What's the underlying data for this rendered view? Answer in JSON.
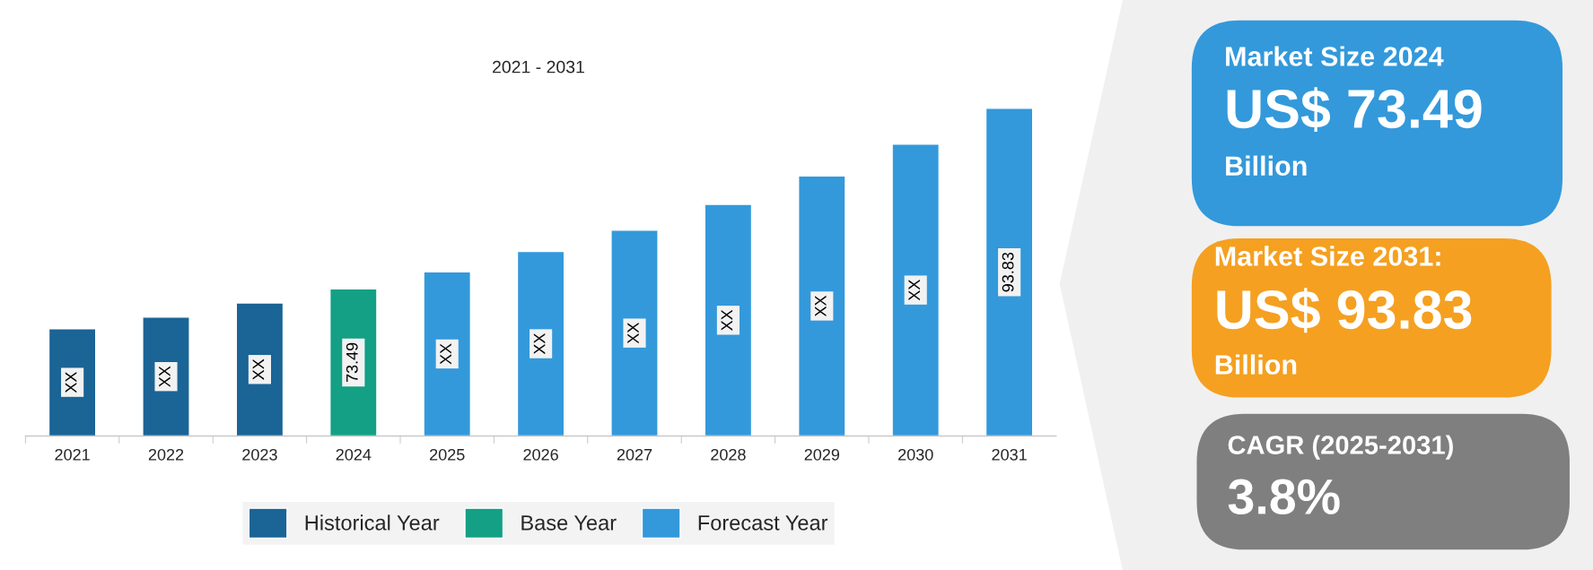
{
  "chart_data": [
    {
      "type": "bar",
      "title": "2021 - 2031",
      "ylim": [
        56.9,
        93.83
      ],
      "tick_labels": "x",
      "categories": [
        "2021",
        "2022",
        "2023",
        "2024",
        "2025",
        "2026",
        "2027",
        "2028",
        "2029",
        "2030",
        "2031"
      ],
      "series": [
        {
          "name": "Historical Year",
          "color": "#1a6496",
          "values": [
            69.0,
            70.3,
            71.9,
            null,
            null,
            null,
            null,
            null,
            null,
            null,
            null
          ],
          "value_labels": [
            "XX",
            "XX",
            "XX",
            null,
            null,
            null,
            null,
            null,
            null,
            null,
            null
          ]
        },
        {
          "name": "Base Year",
          "color": "#13a085",
          "values": [
            null,
            null,
            null,
            73.49,
            null,
            null,
            null,
            null,
            null,
            null,
            null
          ],
          "value_labels": [
            null,
            null,
            null,
            "73.49",
            null,
            null,
            null,
            null,
            null,
            null,
            null
          ]
        },
        {
          "name": "Forecast Year",
          "color": "#3399db",
          "values": [
            null,
            null,
            null,
            null,
            75.4,
            77.7,
            80.1,
            83.0,
            86.2,
            89.8,
            93.83
          ],
          "value_labels": [
            null,
            null,
            null,
            null,
            "XX",
            "XX",
            "XX",
            "XX",
            "XX",
            "XX",
            "93.83"
          ]
        }
      ],
      "legend": "bottom",
      "grid": false
    },
    {
      "type": "other",
      "colors": [
        "#3399db",
        "#f5a020",
        "#7f7f7f"
      ],
      "annotations": [
        "Market Size 2024",
        "US$ 73.49",
        "Billion",
        "Market Size 2031:",
        "US$ 93.83",
        "Billion",
        "CAGR (2025-2031)",
        "3.8%"
      ]
    }
  ]
}
